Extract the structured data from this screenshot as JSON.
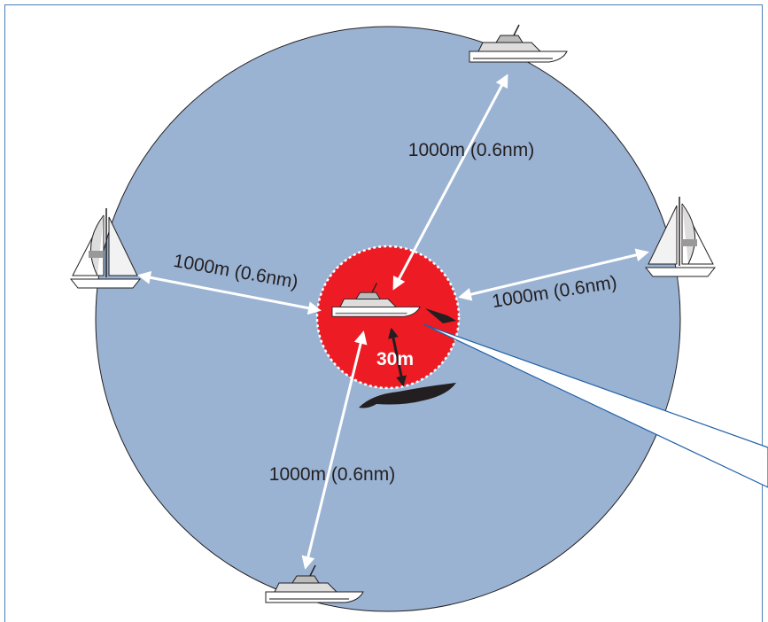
{
  "diagram": {
    "distance_labels": [
      "1000m (0.6nm)",
      "1000m (0.6nm)",
      "1000m (0.6nm)",
      "1000m (0.6nm)"
    ],
    "safety_zone_label": "30m"
  }
}
